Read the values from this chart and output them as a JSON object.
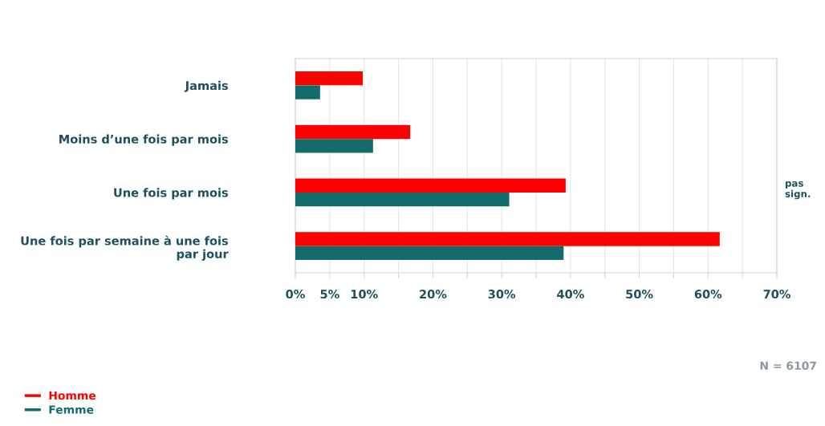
{
  "chart_data": {
    "type": "bar",
    "orientation": "horizontal",
    "categories": [
      "Jamais",
      "Moins d’une fois par mois",
      "Une fois par mois",
      "Une fois par semaine à une fois par jour"
    ],
    "series": [
      {
        "name": "Homme",
        "color": "#ff0000",
        "values": [
          9.8,
          16.7,
          39.3,
          61.7
        ]
      },
      {
        "name": "Femme",
        "color": "#136b6b",
        "values": [
          3.6,
          11.3,
          31.1,
          39.0
        ]
      }
    ],
    "xlim": [
      0,
      70
    ],
    "xticks": [
      {
        "value": 0,
        "label": "0%"
      },
      {
        "value": 5,
        "label": "5%"
      },
      {
        "value": 10,
        "label": "10%"
      },
      {
        "value": 15,
        "label": null
      },
      {
        "value": 20,
        "label": "20%"
      },
      {
        "value": 25,
        "label": null
      },
      {
        "value": 30,
        "label": "30%"
      },
      {
        "value": 35,
        "label": null
      },
      {
        "value": 40,
        "label": "40%"
      },
      {
        "value": 45,
        "label": null
      },
      {
        "value": 50,
        "label": "50%"
      },
      {
        "value": 55,
        "label": null
      },
      {
        "value": 60,
        "label": "60%"
      },
      {
        "value": 65,
        "label": null
      },
      {
        "value": 70,
        "label": "70%"
      }
    ],
    "grid": "x",
    "legend": "bottom left",
    "annotations": [
      "pas sign.",
      "N = 6107"
    ]
  }
}
